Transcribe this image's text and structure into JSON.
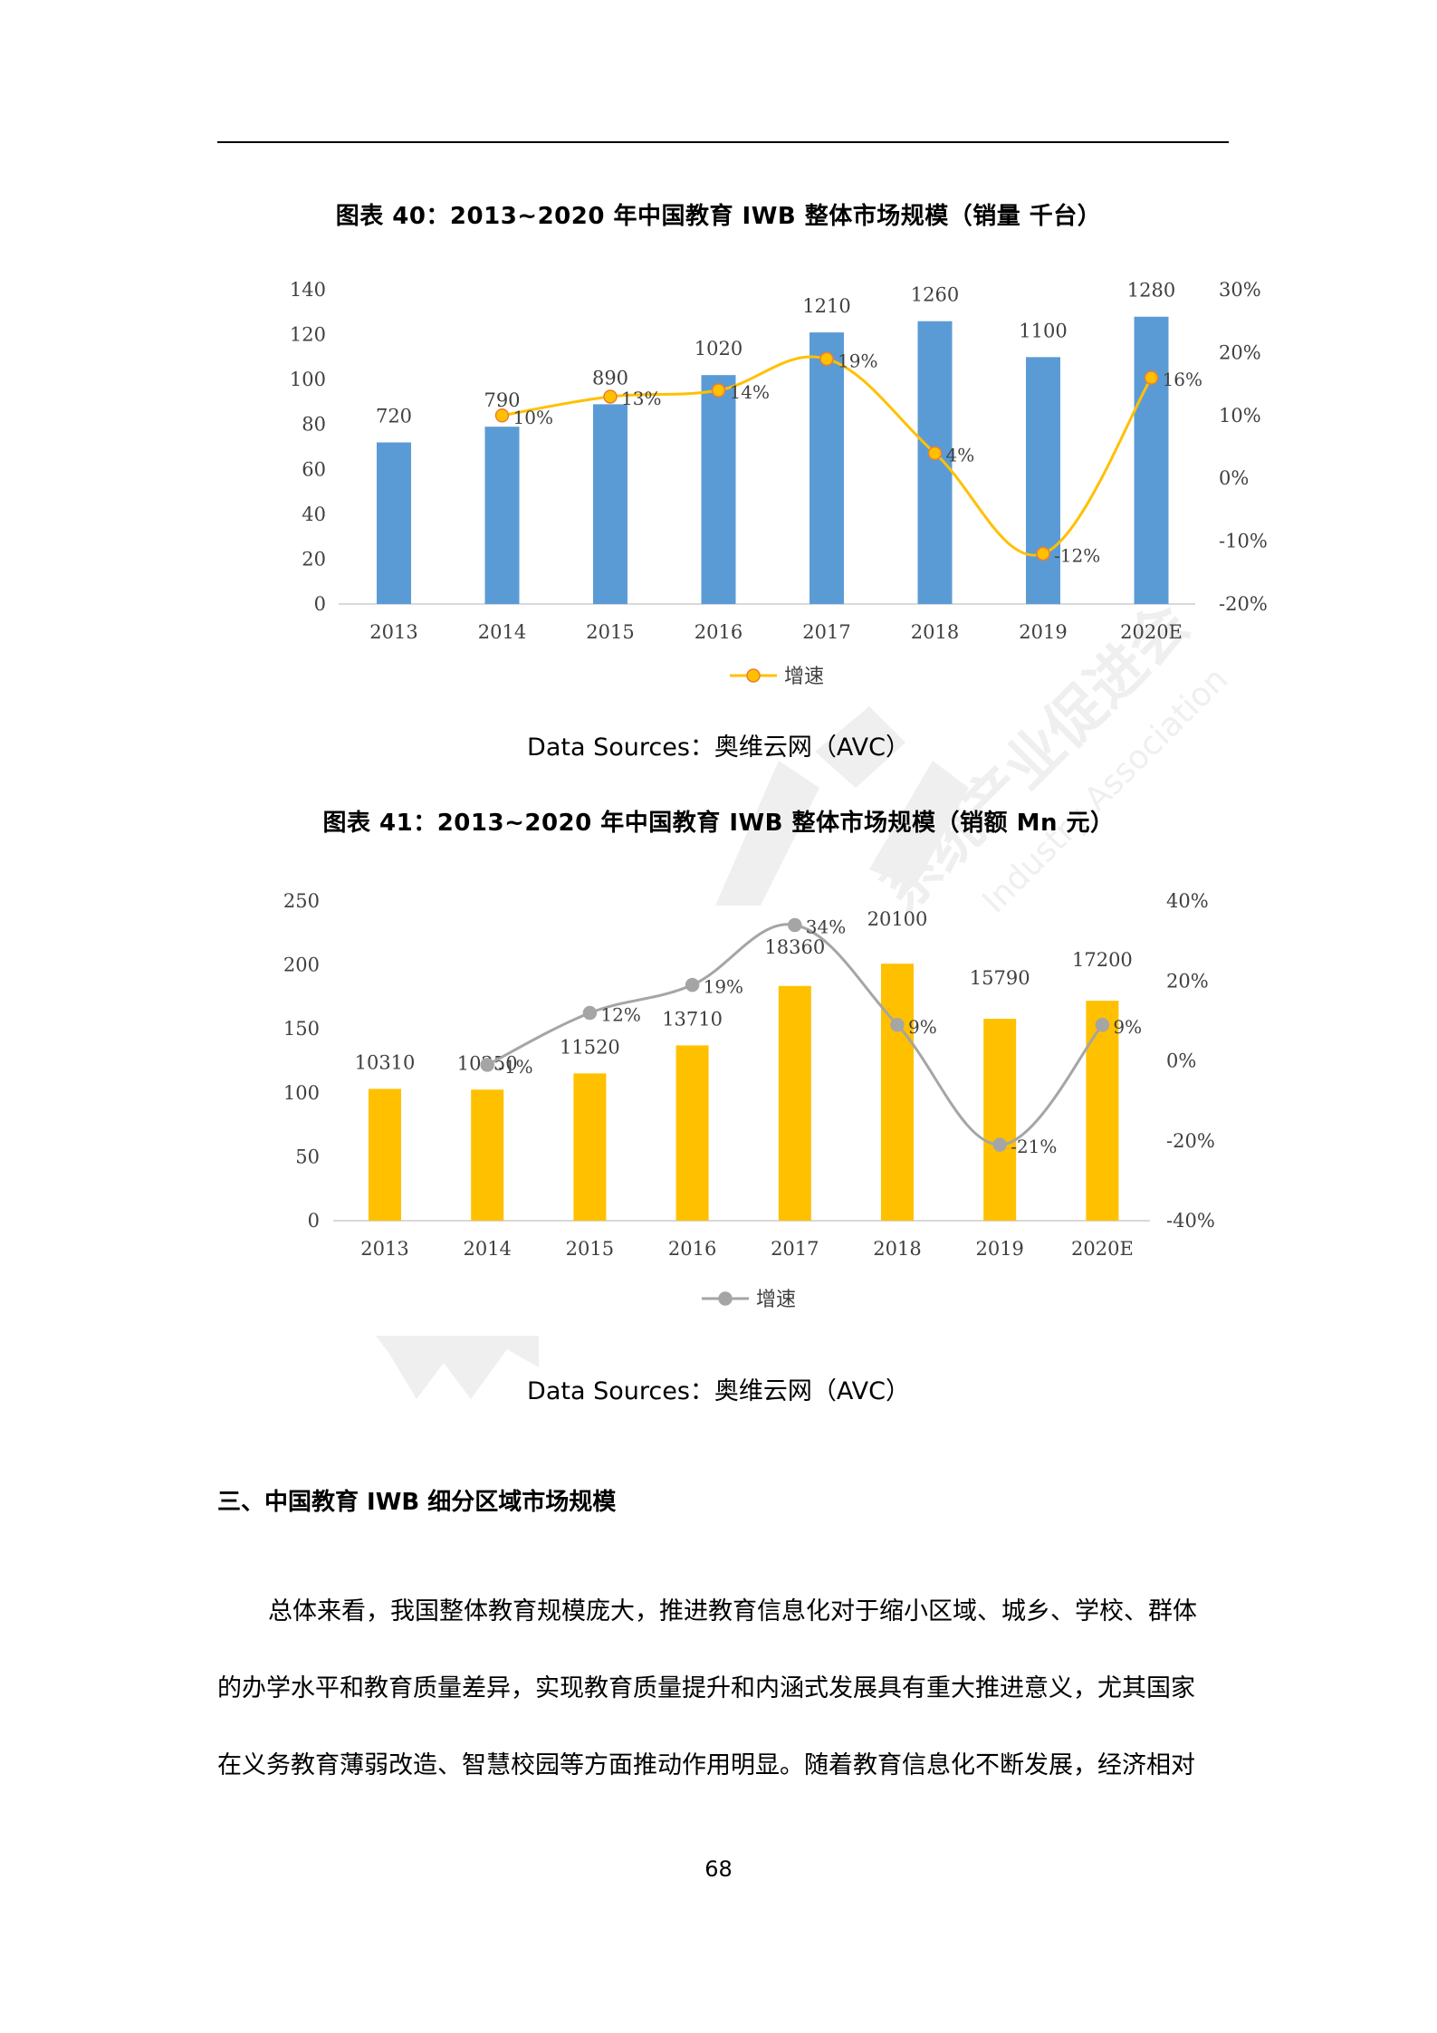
{
  "page": {
    "page_number": "68"
  },
  "figure40": {
    "title": "图表 40：2013~2020 年中国教育 IWB 整体市场规模（销量 千台）",
    "source": "Data Sources：奥维云网（AVC）",
    "legend_label": "增速",
    "bar_color": "#5B9BD5",
    "line_color": "#FFC000",
    "marker_edge": "#ED7D31"
  },
  "figure41": {
    "title": "图表 41：2013~2020 年中国教育 IWB 整体市场规模（销额 Mn 元）",
    "source": "Data Sources：奥维云网（AVC）",
    "legend_label": "增速",
    "bar_color": "#FFC000",
    "line_color": "#A5A5A5"
  },
  "chart_data": [
    {
      "type": "bar",
      "title": "图表 40：2013~2020 年中国教育 IWB 整体市场规模（销量 千台）",
      "categories": [
        "2013",
        "2014",
        "2015",
        "2016",
        "2017",
        "2018",
        "2019",
        "2020E"
      ],
      "series": [
        {
          "name": "销量",
          "type": "bar",
          "axis": "left",
          "values": [
            720,
            790,
            890,
            1020,
            1210,
            1260,
            1100,
            1280
          ],
          "labels": [
            "720",
            "790",
            "890",
            "1020",
            "1210",
            "1260",
            "1100",
            "1280"
          ],
          "plot_scale": 0.1
        },
        {
          "name": "增速",
          "type": "line",
          "axis": "right",
          "values": [
            null,
            10,
            13,
            14,
            19,
            4,
            -12,
            16
          ],
          "labels": [
            "",
            "10%",
            "13%",
            "14%",
            "19%",
            "4%",
            "-12%",
            "16%"
          ]
        }
      ],
      "left_axis": {
        "min": 0,
        "max": 140,
        "ticks": [
          "0",
          "20",
          "40",
          "60",
          "80",
          "100",
          "120",
          "140"
        ]
      },
      "right_axis": {
        "min": -20,
        "max": 30,
        "ticks": [
          "-20%",
          "-10%",
          "0%",
          "10%",
          "20%",
          "30%"
        ]
      },
      "legend": {
        "position": "bottom",
        "entries": [
          "增速"
        ]
      },
      "grid": false
    },
    {
      "type": "bar",
      "title": "图表 41：2013~2020 年中国教育 IWB 整体市场规模（销额 Mn 元）",
      "categories": [
        "2013",
        "2014",
        "2015",
        "2016",
        "2017",
        "2018",
        "2019",
        "2020E"
      ],
      "series": [
        {
          "name": "销额",
          "type": "bar",
          "axis": "left",
          "values": [
            10310,
            10250,
            11520,
            13710,
            18360,
            20100,
            15790,
            17200
          ],
          "labels": [
            "10310",
            "10250",
            "11520",
            "13710",
            "18360",
            "20100",
            "15790",
            "17200"
          ],
          "plot_scale": 0.01
        },
        {
          "name": "增速",
          "type": "line",
          "axis": "right",
          "values": [
            null,
            -1,
            12,
            19,
            34,
            9,
            -21,
            9
          ],
          "labels": [
            "",
            "-1%",
            "12%",
            "19%",
            "34%",
            "9%",
            "-21%",
            "9%"
          ]
        }
      ],
      "left_axis": {
        "min": 0,
        "max": 250,
        "ticks": [
          "0",
          "50",
          "100",
          "150",
          "200",
          "250"
        ]
      },
      "right_axis": {
        "min": -40,
        "max": 40,
        "ticks": [
          "-40%",
          "-20%",
          "0%",
          "20%",
          "40%"
        ]
      },
      "legend": {
        "position": "bottom",
        "entries": [
          "增速"
        ]
      },
      "grid": false
    }
  ],
  "section": {
    "heading": "三、中国教育 IWB 细分区域市场规模",
    "paragraph_lines": [
      "总体来看，我国整体教育规模庞大，推进教育信息化对于缩小区域、城乡、学校、群体",
      "的办学水平和教育质量差异，实现教育质量提升和内涵式发展具有重大推进意义，尤其国家",
      "在义务教育薄弱改造、智慧校园等方面推动作用明显。随着教育信息化不断发展，经济相对"
    ]
  }
}
